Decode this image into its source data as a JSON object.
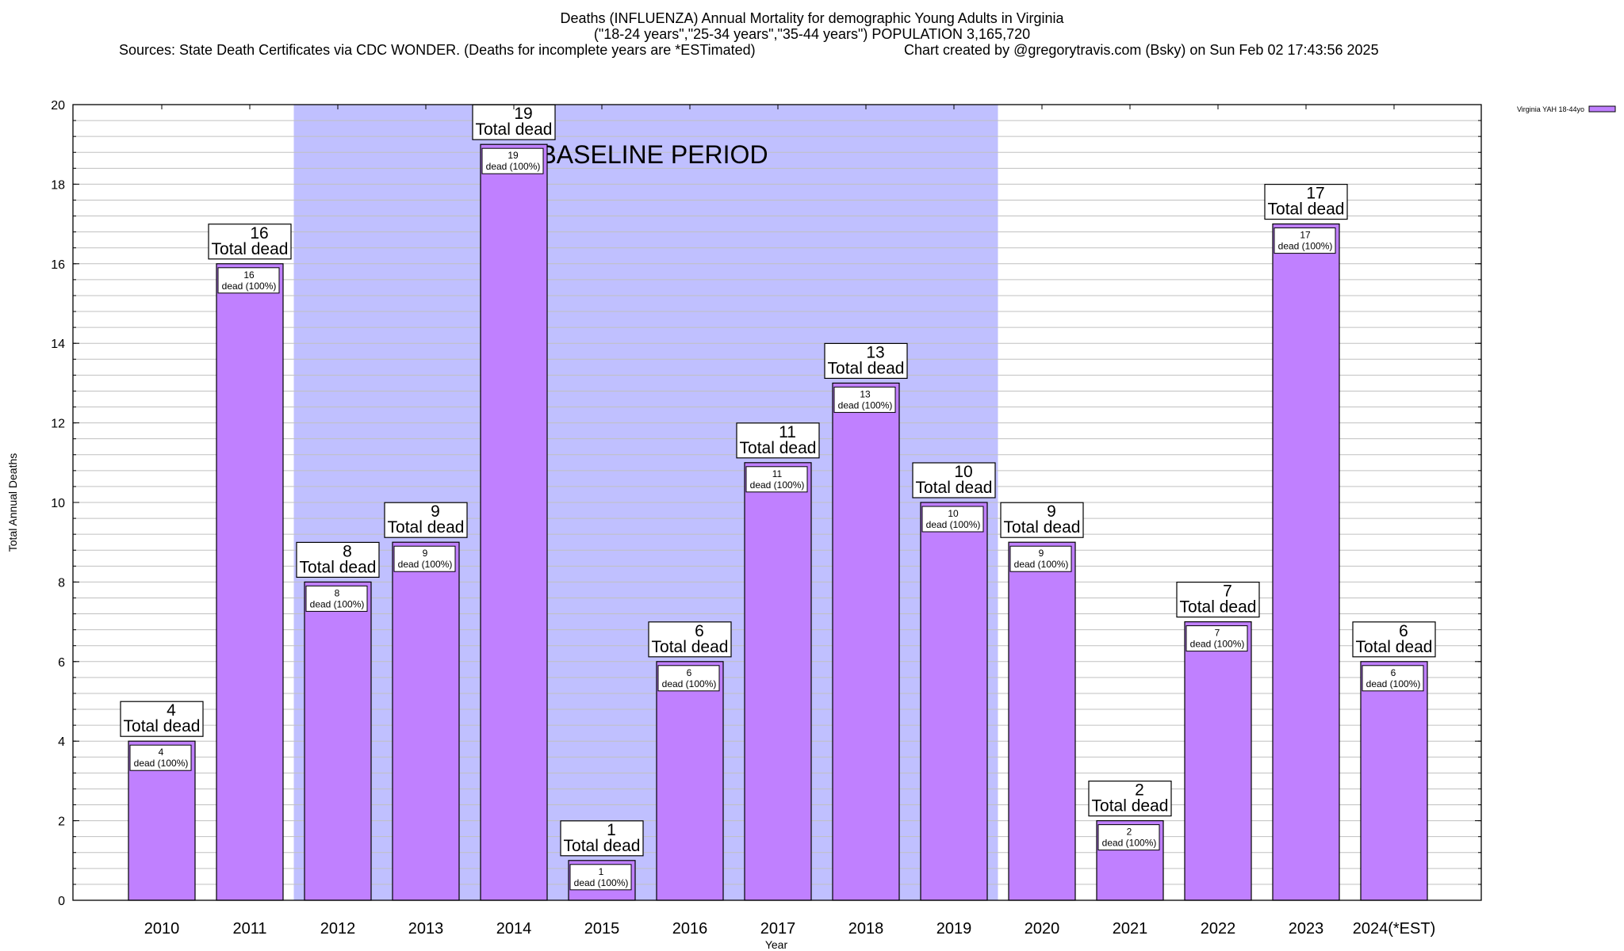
{
  "header": {
    "title": "Deaths (INFLUENZA) Annual Mortality for demographic Young Adults in Virginia",
    "subtitle": "(\"18-24 years\",\"25-34 years\",\"35-44 years\") POPULATION 3,165,720",
    "sources": "Sources: State Death Certificates via CDC WONDER. (Deaths for incomplete years are *ESTimated)",
    "credit": "Chart created by @gregorytravis.com (Bsky) on Sun Feb 02 17:43:56 2025"
  },
  "colors": {
    "bar": "#c080ff",
    "band": "#c0c0ff",
    "grid": "#c0c0c0",
    "axis": "#000000",
    "label_box": "#ffffff"
  },
  "chart_data": {
    "type": "bar",
    "title": "Deaths (INFLUENZA) Annual Mortality for demographic Young Adults in Virginia",
    "xlabel": "Year",
    "ylabel": "Total Annual Deaths",
    "ylim": [
      0,
      20
    ],
    "yticks": [
      0,
      2,
      4,
      6,
      8,
      10,
      12,
      14,
      16,
      18,
      20
    ],
    "y_minor_step": 0.4,
    "grid": true,
    "legend": {
      "position": "top-right",
      "entries": [
        "Virginia YAH 18-44yo"
      ]
    },
    "categories": [
      "2010",
      "2011",
      "2012",
      "2013",
      "2014",
      "2015",
      "2016",
      "2017",
      "2018",
      "2019",
      "2020",
      "2021",
      "2022",
      "2023",
      "2024(*EST)"
    ],
    "series": [
      {
        "name": "Virginia YAH 18-44yo",
        "values": [
          4,
          16,
          8,
          9,
          19,
          1,
          6,
          11,
          13,
          10,
          9,
          2,
          7,
          17,
          6
        ]
      }
    ],
    "total_label_text": "Total dead",
    "inner_label_text": "dead (100%)",
    "annotations": [
      {
        "type": "band",
        "label": "BASELINE PERIOD",
        "from_category": "2012",
        "to_category": "2019"
      }
    ]
  }
}
